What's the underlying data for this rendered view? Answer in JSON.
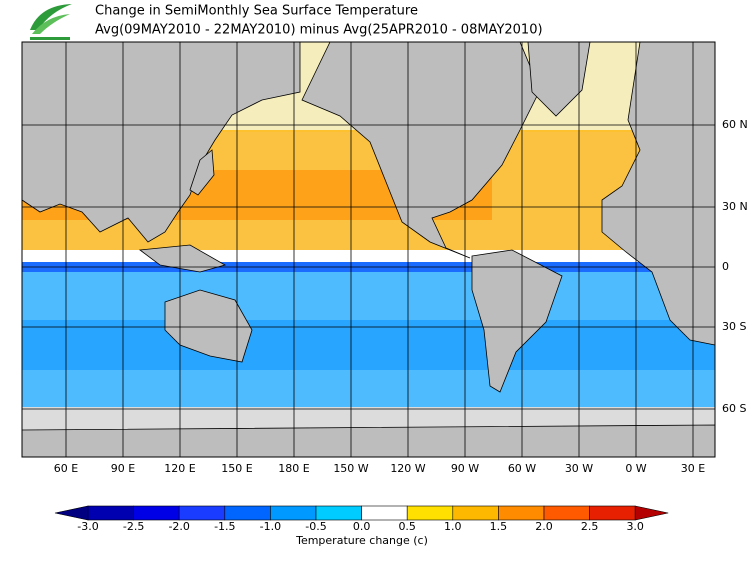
{
  "header": {
    "title_lines": [
      "Change in SemiMonthly Sea Surface Temperature",
      "Avg(09MAY2010 - 22MAY2010) minus Avg(25APR2010 - 08MAY2010)"
    ]
  },
  "map": {
    "lat_labels": [
      "60 N",
      "30 N",
      "0",
      "30 S",
      "60 S"
    ],
    "lon_labels": [
      "60 E",
      "90 E",
      "120 E",
      "150 E",
      "180 E",
      "150 W",
      "120 W",
      "90 W",
      "60 W",
      "30 W",
      "0 W",
      "30 E"
    ]
  },
  "colorbar": {
    "ticks": [
      "-3.0",
      "-2.5",
      "-2.0",
      "-1.5",
      "-1.0",
      "-0.5",
      "0.0",
      "0.5",
      "1.0",
      "1.5",
      "2.0",
      "2.5",
      "3.0"
    ],
    "colors": [
      "#000080",
      "#0000b0",
      "#0000e6",
      "#1a3cff",
      "#0066ff",
      "#0099ff",
      "#00ccff",
      "#ffffff",
      "#ffe000",
      "#ffb800",
      "#ff8c00",
      "#ff5a00",
      "#e62000",
      "#b40000"
    ],
    "label": "Temperature change  (c)"
  }
}
